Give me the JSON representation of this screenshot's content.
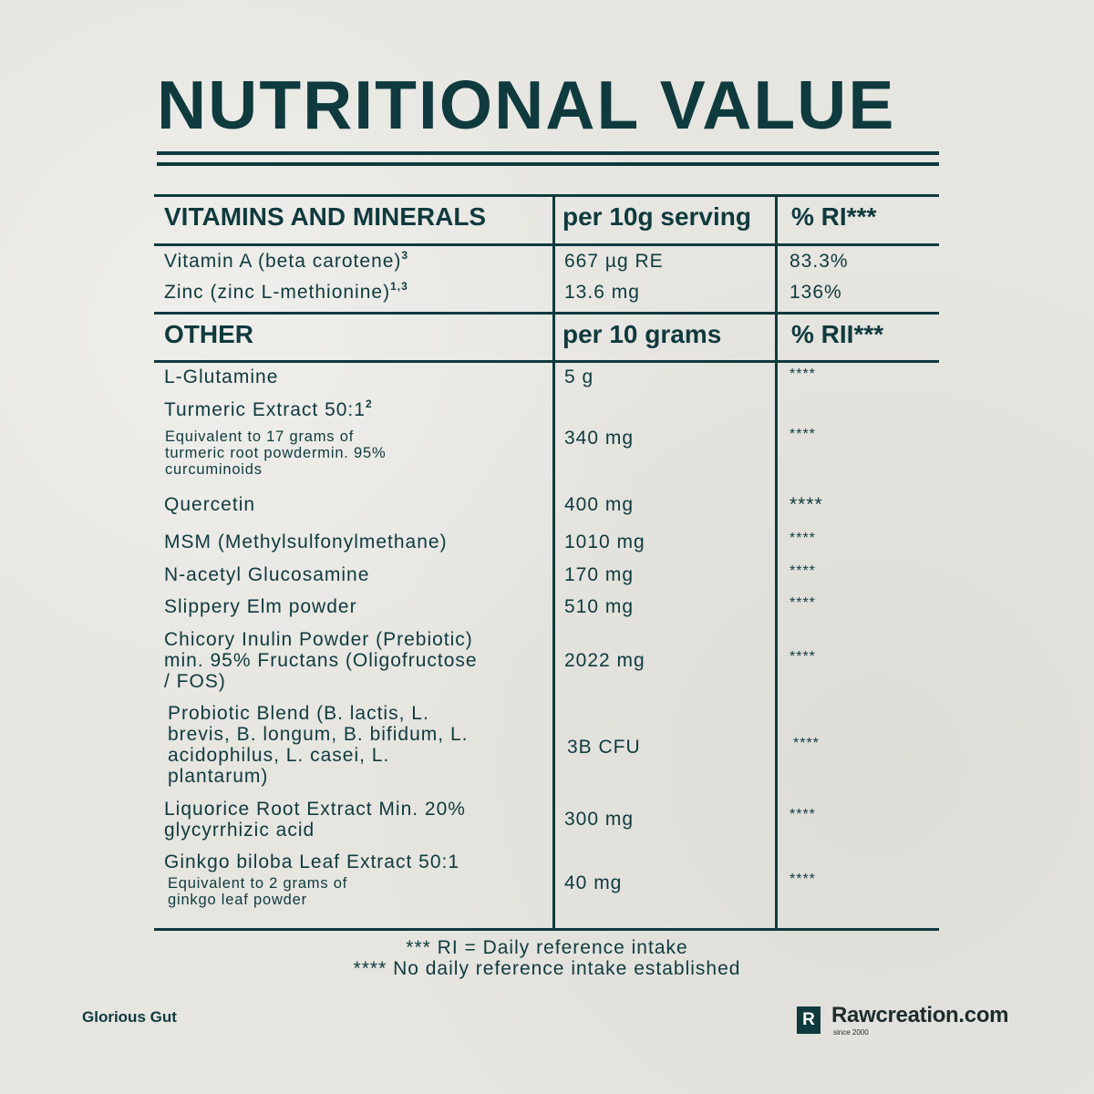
{
  "title": "NUTRITIONAL VALUE",
  "vitamins_section": {
    "header": "VITAMINS AND MINERALS",
    "col_amount": "per 10g serving",
    "col_ri": "% RI***",
    "rows": [
      {
        "name": "Vitamin A (beta carotene)",
        "sup": "3",
        "amount": "667 µg RE",
        "ri": "83.3%"
      },
      {
        "name": "Zinc (zinc L-methionine)",
        "sup": "1,3",
        "amount": "13.6 mg",
        "ri": "136%"
      }
    ]
  },
  "other_section": {
    "header": "OTHER",
    "col_amount": "per 10 grams",
    "col_ri": "% RII***",
    "rows": [
      {
        "name": "L-Glutamine",
        "amount": "5 g",
        "ri": "****"
      },
      {
        "name": "Turmeric Extract 50:1",
        "sup": "2",
        "note_lines": [
          "Equivalent to 17 grams of",
          "turmeric root powdermin. 95%",
          "curcuminoids"
        ],
        "amount": "340 mg",
        "ri": "****"
      },
      {
        "name": "Quercetin",
        "amount": "400 mg",
        "ri": "****"
      },
      {
        "name": "MSM (Methylsulfonylmethane)",
        "amount": "1010 mg",
        "ri": "****"
      },
      {
        "name": "N-acetyl Glucosamine",
        "amount": "170 mg",
        "ri": "****"
      },
      {
        "name": "Slippery Elm powder",
        "amount": "510 mg",
        "ri": "****"
      },
      {
        "name_lines": [
          "Chicory Inulin Powder (Prebiotic)",
          "min. 95% Fructans (Oligofructose",
          "/ FOS)"
        ],
        "amount": "2022 mg",
        "ri": "****"
      },
      {
        "name_lines": [
          "Probiotic Blend (B. lactis, L.",
          "brevis, B. longum, B. bifidum, L.",
          "acidophilus, L. casei, L.",
          "plantarum)"
        ],
        "amount": "3B CFU",
        "ri": "****"
      },
      {
        "name_lines": [
          "Liquorice Root Extract Min. 20%",
          "glycyrrhizic acid"
        ],
        "amount": "300 mg",
        "ri": "****"
      },
      {
        "name": "Ginkgo biloba Leaf Extract 50:1",
        "note_lines": [
          "Equivalent to 2 grams of",
          "ginkgo leaf powder"
        ],
        "amount": "40 mg",
        "ri": "****"
      }
    ]
  },
  "footnotes": [
    "*** RI = Daily reference intake",
    "**** No daily reference intake established"
  ],
  "product_name": "Glorious Gut",
  "brand": {
    "logo_letter": "R",
    "name": "Rawcreation.com",
    "since": "since 2000"
  },
  "colors": {
    "ink": "#0f3a3e",
    "background": "#e6e5e0"
  }
}
